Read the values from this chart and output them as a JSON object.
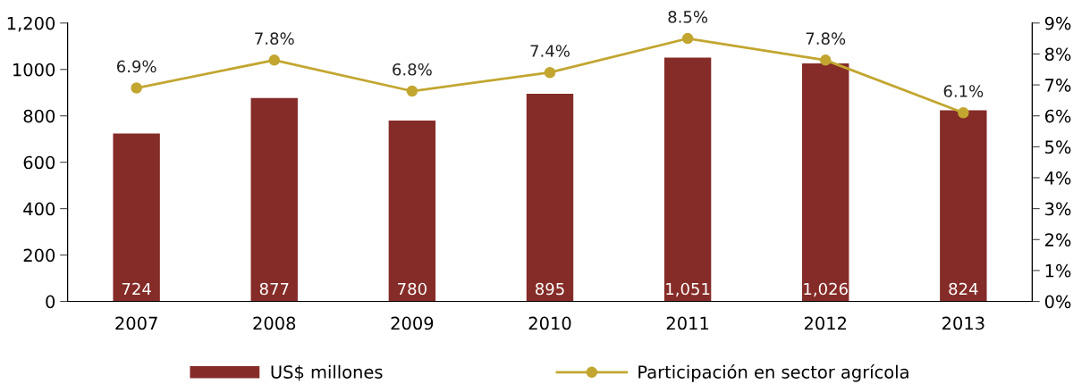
{
  "chart_data": {
    "type": "bar",
    "categories": [
      "2007",
      "2008",
      "2009",
      "2010",
      "2011",
      "2012",
      "2013"
    ],
    "series": [
      {
        "name": "US$ millones",
        "color": "#852c28",
        "values": [
          724,
          877,
          780,
          895,
          1051,
          1026,
          824
        ],
        "value_labels": [
          "724",
          "877",
          "780",
          "895",
          "1,051",
          "1,026",
          "824"
        ]
      },
      {
        "name": "Participación en sector agrícola",
        "type": "line",
        "axis": "y2",
        "color": "#c2a630",
        "marker": "circle",
        "values": [
          6.9,
          7.8,
          6.8,
          7.4,
          8.5,
          7.8,
          6.1
        ],
        "value_labels": [
          "6.9%",
          "7.8%",
          "6.8%",
          "7.4%",
          "8.5%",
          "7.8%",
          "6.1%"
        ]
      }
    ],
    "ylim": [
      0,
      1200
    ],
    "yticks": [
      0,
      200,
      400,
      600,
      800,
      1000,
      {
        "value": 1200,
        "label": "1,200"
      }
    ],
    "y2lim": [
      0,
      9
    ],
    "y2ticks": [
      {
        "value": 0,
        "label": "0%"
      },
      {
        "value": 1,
        "label": "1%"
      },
      {
        "value": 2,
        "label": "2%"
      },
      {
        "value": 3,
        "label": "3%"
      },
      {
        "value": 4,
        "label": "4%"
      },
      {
        "value": 5,
        "label": "5%"
      },
      {
        "value": 6,
        "label": "6%"
      },
      {
        "value": 7,
        "label": "7%"
      },
      {
        "value": 8,
        "label": "8%"
      },
      {
        "value": 9,
        "label": "9%"
      }
    ],
    "grid": false,
    "legend": "bottom"
  }
}
